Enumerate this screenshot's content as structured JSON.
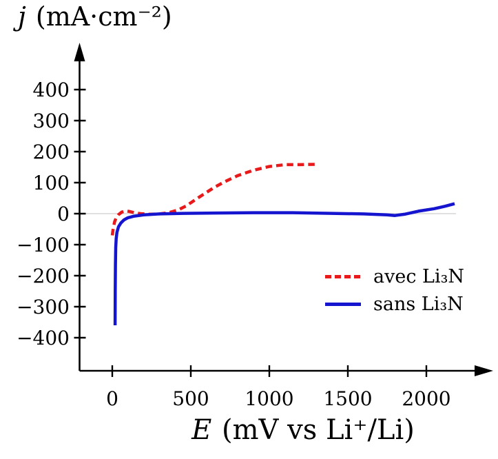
{
  "chart_data": {
    "type": "line",
    "title": "",
    "ylabel": {
      "var": "j",
      "rest": " (mA·cm⁻²)"
    },
    "xlabel": {
      "var": "E",
      "rest": " (mV vs Li⁺/Li)"
    },
    "x_axis": {
      "min": 0,
      "max": 2300,
      "ticks": [
        0,
        500,
        1000,
        1500,
        2000
      ],
      "tick_labels": [
        "0",
        "500",
        "1000",
        "1500",
        "2000"
      ]
    },
    "y_axis": {
      "min": -400,
      "max": 400,
      "ticks": [
        400,
        300,
        200,
        100,
        0,
        -100,
        -200,
        -300,
        -400
      ],
      "tick_labels": [
        "400",
        "300",
        "200",
        "100",
        "0",
        "−100",
        "−200",
        "−300",
        "−400"
      ]
    },
    "grid": "zero-line-only",
    "zero_line_color": "#d6d6d6",
    "axis_color": "#000000",
    "legend_position": "inside-right",
    "series": [
      {
        "name": "avec Li₃N",
        "color": "#e8191a",
        "style": "dashed",
        "points": [
          [
            0,
            -70
          ],
          [
            4,
            -55
          ],
          [
            9,
            -40
          ],
          [
            15,
            -26
          ],
          [
            25,
            -13
          ],
          [
            40,
            -3
          ],
          [
            60,
            5
          ],
          [
            85,
            9
          ],
          [
            110,
            7
          ],
          [
            140,
            3
          ],
          [
            180,
            0
          ],
          [
            240,
            -2
          ],
          [
            300,
            -1
          ],
          [
            360,
            3
          ],
          [
            420,
            12
          ],
          [
            470,
            25
          ],
          [
            520,
            42
          ],
          [
            580,
            62
          ],
          [
            650,
            85
          ],
          [
            720,
            104
          ],
          [
            800,
            123
          ],
          [
            900,
            140
          ],
          [
            1000,
            152
          ],
          [
            1100,
            158
          ],
          [
            1200,
            158
          ],
          [
            1300,
            159
          ]
        ]
      },
      {
        "name": "sans Li₃N",
        "color": "#1515d0",
        "style": "solid",
        "points": [
          [
            18,
            -360
          ],
          [
            19,
            -250
          ],
          [
            20,
            -165
          ],
          [
            22,
            -110
          ],
          [
            25,
            -80
          ],
          [
            30,
            -60
          ],
          [
            40,
            -42
          ],
          [
            55,
            -30
          ],
          [
            75,
            -20
          ],
          [
            100,
            -13
          ],
          [
            140,
            -8
          ],
          [
            200,
            -4
          ],
          [
            300,
            -1
          ],
          [
            450,
            1
          ],
          [
            650,
            2
          ],
          [
            900,
            3
          ],
          [
            1150,
            3
          ],
          [
            1400,
            1
          ],
          [
            1600,
            -1
          ],
          [
            1750,
            -4
          ],
          [
            1800,
            -6
          ],
          [
            1860,
            -2
          ],
          [
            1950,
            8
          ],
          [
            2050,
            16
          ],
          [
            2120,
            24
          ],
          [
            2180,
            32
          ]
        ]
      }
    ]
  }
}
